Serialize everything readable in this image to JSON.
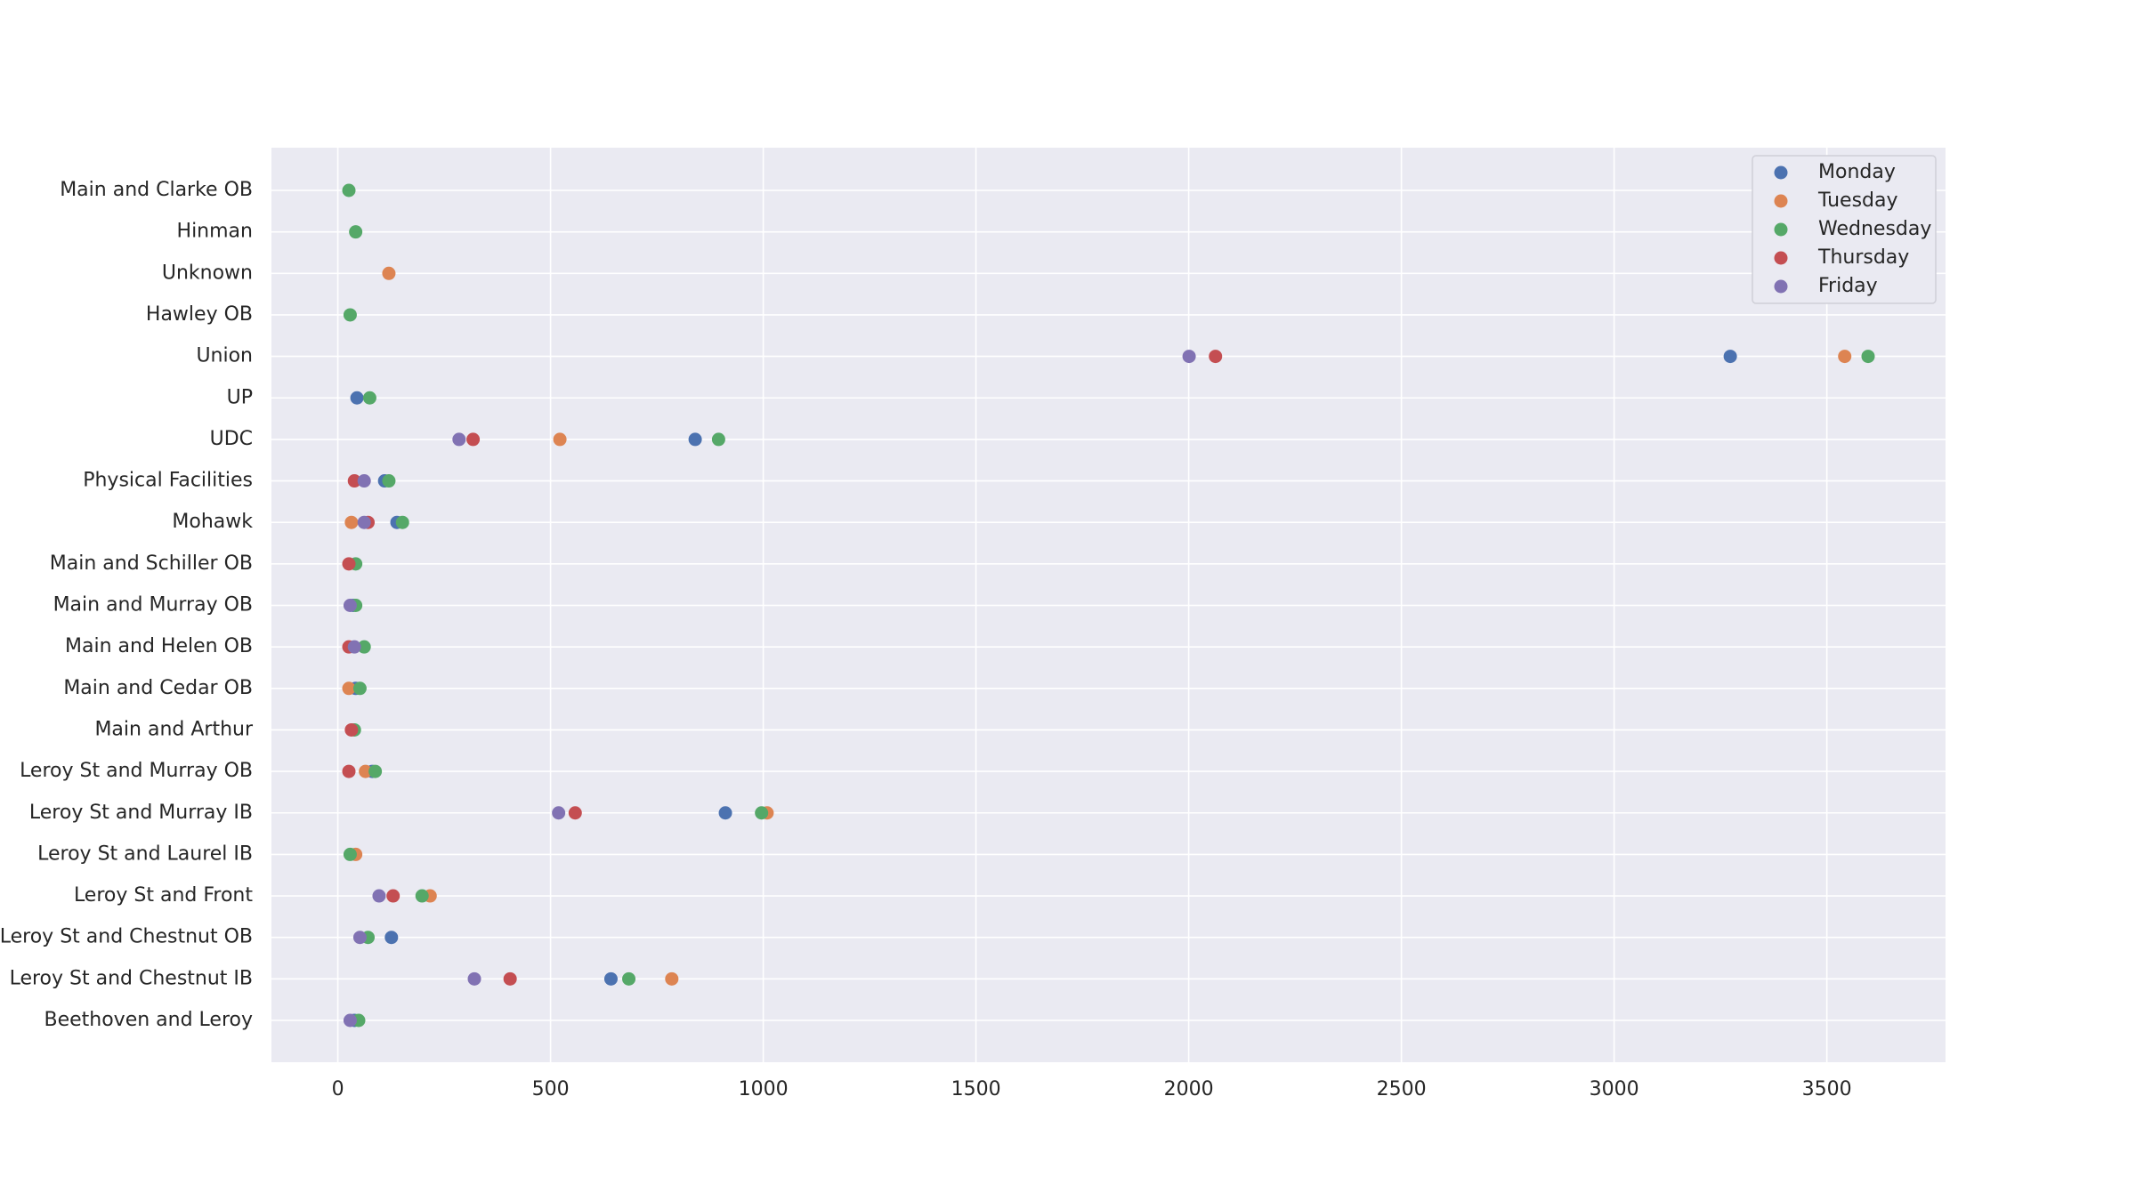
{
  "chart_data": {
    "type": "scatter",
    "categories": [
      "Main and Clarke OB",
      "Hinman",
      "Unknown",
      "Hawley OB",
      "Union",
      "UP",
      "UDC",
      "Physical Facilities",
      "Mohawk",
      "Main and Schiller OB",
      "Main and Murray OB",
      "Main and Helen OB",
      "Main and Cedar OB",
      "Main and Arthur",
      "Leroy St and Murray OB",
      "Leroy St and Murray IB",
      "Leroy St and Laurel IB",
      "Leroy St and Front",
      "Leroy St and Chestnut OB",
      "Leroy St and Chestnut IB",
      "Beethoven and Leroy"
    ],
    "series": [
      {
        "name": "Monday",
        "color": "#4c72b0",
        "values": [
          null,
          null,
          null,
          null,
          3273,
          45,
          840,
          110,
          139,
          null,
          36,
          null,
          42,
          null,
          81,
          911,
          null,
          null,
          126,
          642,
          39
        ]
      },
      {
        "name": "Tuesday",
        "color": "#dd8452",
        "values": [
          null,
          null,
          120,
          null,
          3542,
          null,
          522,
          null,
          32,
          null,
          null,
          null,
          26,
          null,
          65,
          1009,
          42,
          217,
          null,
          785,
          null
        ]
      },
      {
        "name": "Wednesday",
        "color": "#55a868",
        "values": [
          26,
          42,
          null,
          29,
          3597,
          75,
          895,
          120,
          152,
          42,
          42,
          62,
          52,
          39,
          88,
          996,
          29,
          198,
          71,
          684,
          49
        ]
      },
      {
        "name": "Thursday",
        "color": "#c44e52",
        "values": [
          null,
          null,
          null,
          null,
          2063,
          null,
          318,
          39,
          71,
          26,
          null,
          26,
          null,
          32,
          26,
          558,
          null,
          130,
          null,
          405,
          null
        ]
      },
      {
        "name": "Friday",
        "color": "#8172b3",
        "values": [
          null,
          null,
          null,
          null,
          2001,
          null,
          285,
          62,
          62,
          null,
          29,
          39,
          null,
          null,
          null,
          519,
          null,
          97,
          52,
          321,
          29
        ]
      }
    ],
    "xlim": [
      -156,
      3779
    ],
    "xticks": [
      0,
      500,
      1000,
      1500,
      2000,
      2500,
      3000,
      3500
    ],
    "grid": true,
    "legend": "upper right"
  }
}
